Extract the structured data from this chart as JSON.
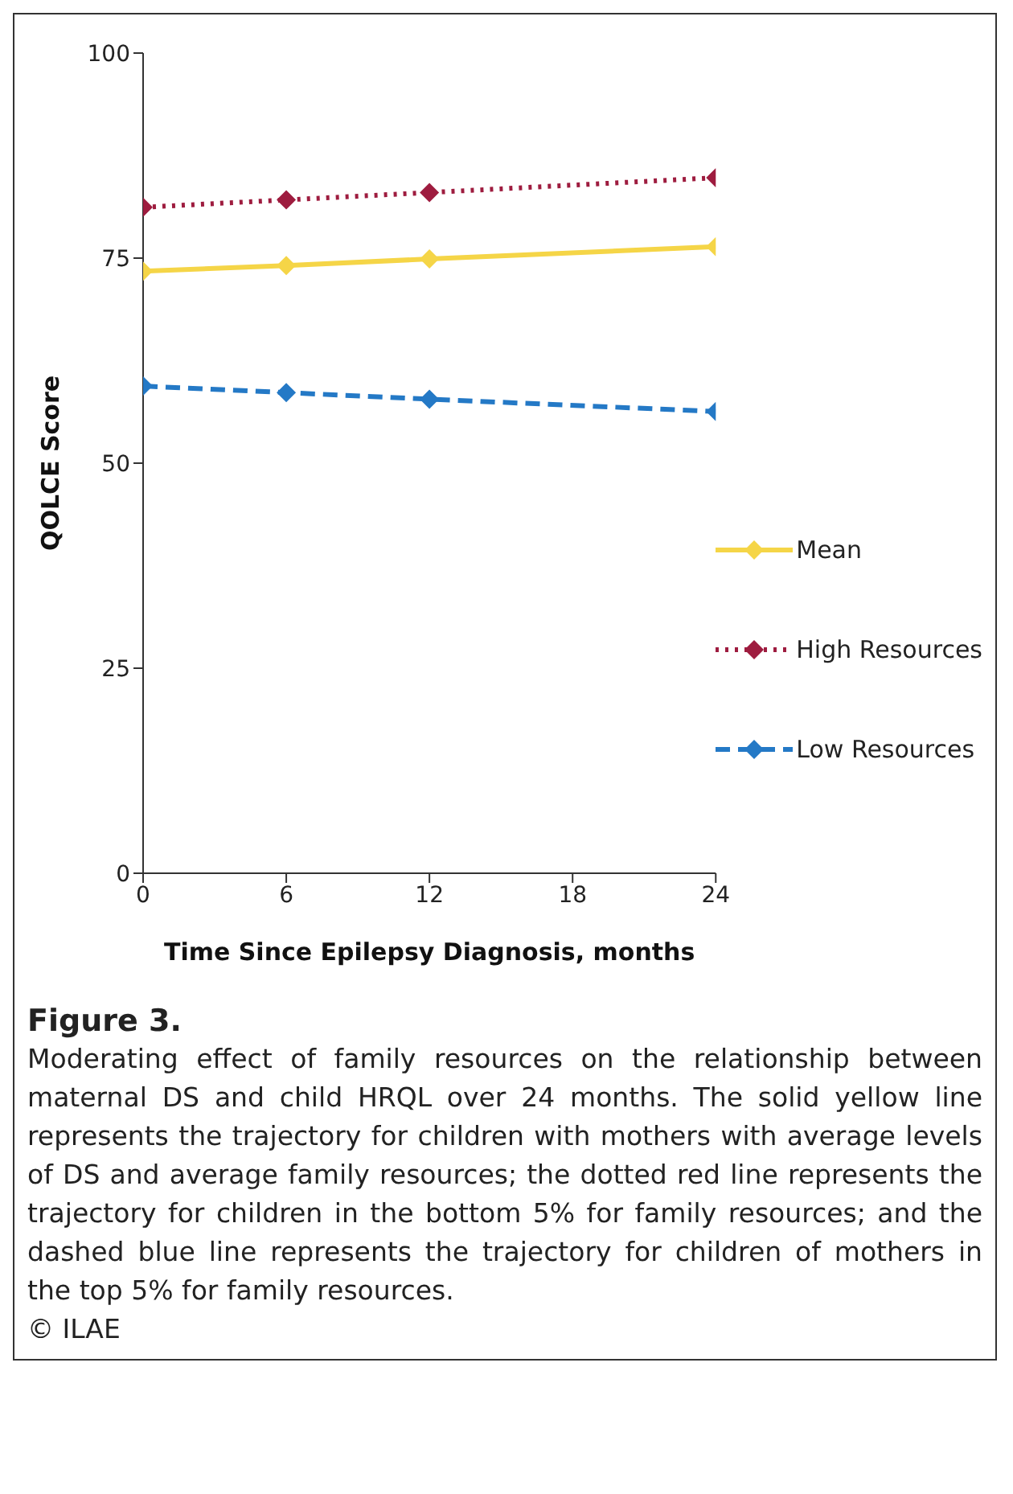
{
  "chart_data": {
    "type": "line",
    "title": "Figure 3.",
    "xlabel": "Time Since Epilepsy Diagnosis, months",
    "ylabel": "QOLCE Score",
    "x": [
      0,
      6,
      12,
      24
    ],
    "xlim": [
      0,
      24
    ],
    "xticks": [
      0,
      6,
      12,
      18,
      24
    ],
    "ylim": [
      0,
      100
    ],
    "yticks": [
      0,
      25,
      50,
      75,
      100
    ],
    "series": [
      {
        "name": "Mean",
        "color": "#f5d547",
        "line_style": "solid",
        "values": [
          73.4,
          74.1,
          74.9,
          76.4
        ]
      },
      {
        "name": "High Resources",
        "color": "#9e1c3f",
        "line_style": "dotted",
        "values": [
          81.2,
          82.1,
          83.0,
          84.8
        ]
      },
      {
        "name": "Low Resources",
        "color": "#2479c6",
        "line_style": "dashed",
        "values": [
          59.4,
          58.6,
          57.8,
          56.3
        ]
      }
    ],
    "marker": "diamond",
    "grid": false,
    "legend": "right",
    "annotations": [
      "Moderating effect of family resources on the relationship between maternal DS and child HRQL over 24 months. The solid yellow line represents the trajectory for children with mothers with average levels of DS and average family resources; the dotted red line represents the trajectory for children in the bottom 5% for family resources; and the dashed blue line represents the trajectory for children of mothers in the top 5% for family resources.",
      "© ILAE"
    ]
  }
}
